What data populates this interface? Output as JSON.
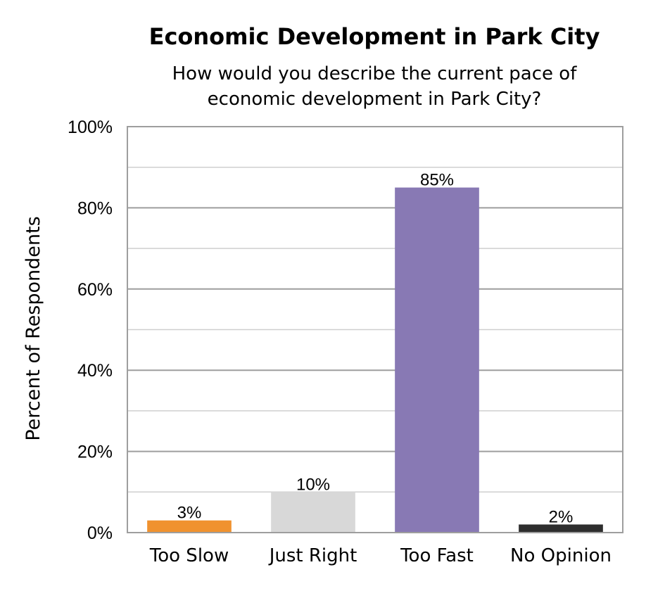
{
  "chart_data": {
    "type": "bar",
    "title": "Economic Development in Park City",
    "subtitle": [
      "How would you describe the current pace of",
      "economic development in Park City?"
    ],
    "xlabel": "",
    "ylabel": "Percent of Respondents",
    "categories": [
      "Too Slow",
      "Just Right",
      "Too Fast",
      "No Opinion"
    ],
    "values": [
      3,
      10,
      85,
      2
    ],
    "data_labels": [
      "3%",
      "10%",
      "85%",
      "2%"
    ],
    "bar_colors": [
      "#f0922f",
      "#d8d8d8",
      "#8879b4",
      "#2e2e2e"
    ],
    "ylim": [
      0,
      100
    ],
    "y_ticks": [
      0,
      20,
      40,
      60,
      80,
      100
    ],
    "y_tick_labels": [
      "0%",
      "20%",
      "40%",
      "60%",
      "80%",
      "100%"
    ],
    "minor_gridlines": [
      10,
      30,
      50,
      70,
      90
    ],
    "grid": true,
    "legend": "none"
  }
}
